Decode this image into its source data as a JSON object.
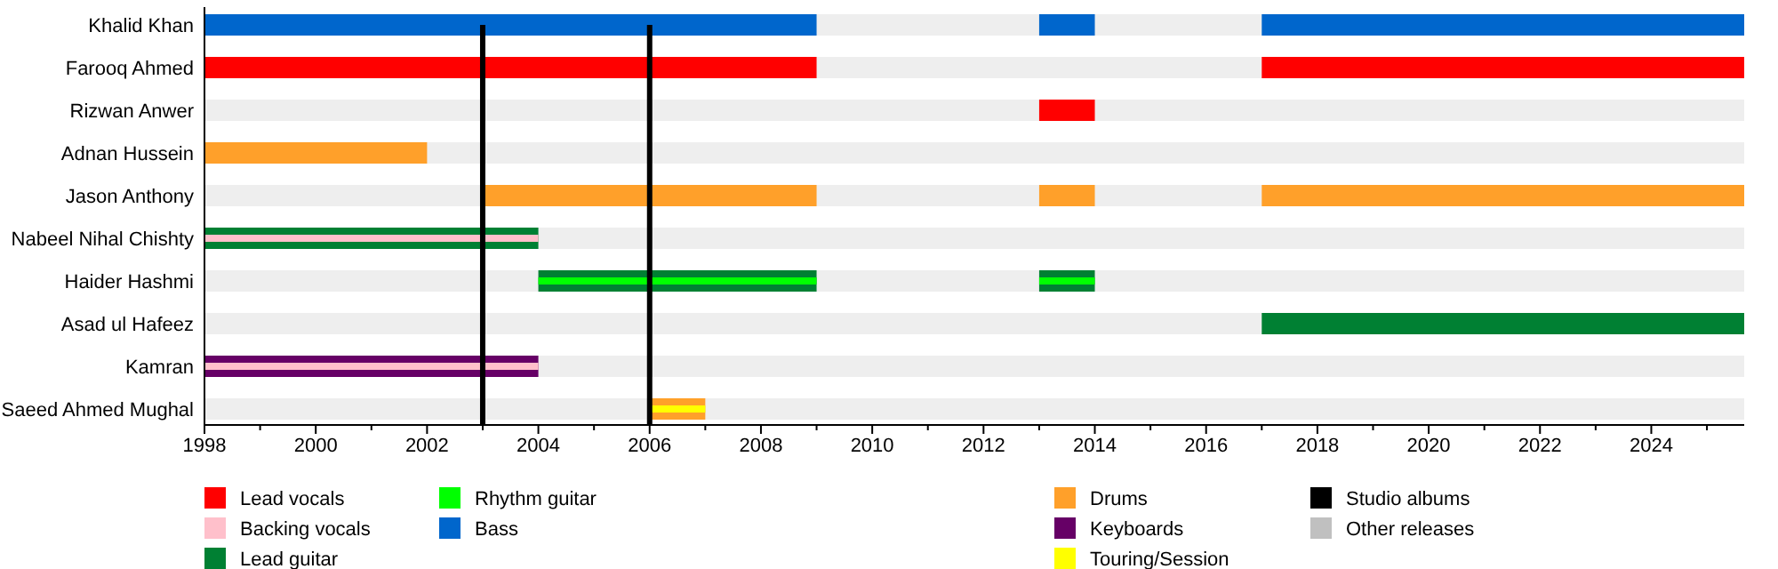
{
  "chart_data": {
    "type": "bar",
    "orientation": "horizontal",
    "categories": [
      "Khalid Khan",
      "Farooq Ahmed",
      "Rizwan Anwer",
      "Adnan Hussein",
      "Jason Anthony",
      "Nabeel Nihal Chishty",
      "Haider Hashmi",
      "Asad ul Hafeez",
      "Kamran",
      "Saeed Ahmed Mughal"
    ],
    "xlim": [
      1998,
      2025.67
    ],
    "xticks": [
      1998,
      {
        "value": 1999,
        "label": null
      },
      2000,
      {
        "value": 2001,
        "label": null
      },
      2002,
      {
        "value": 2003,
        "label": null
      },
      2004,
      {
        "value": 2005,
        "label": null
      },
      2006,
      {
        "value": 2007,
        "label": null
      },
      2008,
      {
        "value": 2009,
        "label": null
      },
      2010,
      {
        "value": 2011,
        "label": null
      },
      2012,
      {
        "value": 2013,
        "label": null
      },
      2014,
      {
        "value": 2015,
        "label": null
      },
      2016,
      {
        "value": 2017,
        "label": null
      },
      2018,
      {
        "value": 2019,
        "label": null
      },
      2020,
      {
        "value": 2021,
        "label": null
      },
      2022,
      {
        "value": 2023,
        "label": null
      },
      2024,
      {
        "value": 2025,
        "label": null
      }
    ],
    "series": [
      {
        "name": "Lead vocals",
        "color": "#ff0000",
        "base": [
          null,
          1998,
          2013,
          null,
          null,
          null,
          null,
          null,
          null,
          null
        ],
        "values": [
          null,
          11,
          1,
          null,
          null,
          null,
          null,
          null,
          null,
          null
        ]
      },
      {
        "name": "Bass",
        "color": "#0066cc",
        "base": [
          1998,
          null,
          null,
          null,
          null,
          null,
          null,
          null,
          null,
          null
        ],
        "values": [
          11,
          null,
          null,
          null,
          null,
          null,
          null,
          null,
          null,
          null
        ]
      },
      {
        "name": "Drums",
        "color": "#ffa02a",
        "base": [
          null,
          null,
          null,
          1998,
          2003,
          null,
          null,
          null,
          null,
          2006
        ],
        "values": [
          null,
          null,
          null,
          4,
          6,
          null,
          null,
          null,
          null,
          1
        ]
      },
      {
        "name": "Lead guitar",
        "color": "#008033",
        "base": [
          null,
          null,
          null,
          null,
          null,
          1998,
          2004,
          2017,
          null,
          null
        ],
        "values": [
          null,
          null,
          null,
          null,
          null,
          6,
          5,
          8.67,
          null,
          null
        ]
      },
      {
        "name": "Keyboards",
        "color": "#660066",
        "base": [
          null,
          null,
          null,
          null,
          null,
          null,
          null,
          null,
          1998,
          null
        ],
        "values": [
          null,
          null,
          null,
          null,
          null,
          null,
          null,
          null,
          6,
          null
        ]
      },
      {
        "name": "Backing vocals",
        "color": "#ffc0cb",
        "base": [
          null,
          null,
          null,
          null,
          null,
          1998,
          null,
          null,
          1998,
          null
        ],
        "values": [
          null,
          null,
          null,
          null,
          null,
          6,
          null,
          null,
          6,
          null
        ]
      },
      {
        "name": "Rhythm guitar",
        "color": "#00ff00",
        "base": [
          null,
          null,
          null,
          null,
          null,
          null,
          2004,
          null,
          null,
          null
        ],
        "values": [
          null,
          null,
          null,
          null,
          null,
          null,
          5,
          null,
          null,
          null
        ]
      },
      {
        "name": "Touring/Session",
        "color": "#ffff00",
        "base": [
          null,
          null,
          null,
          null,
          null,
          null,
          null,
          null,
          null,
          2006
        ],
        "values": [
          null,
          null,
          null,
          null,
          null,
          null,
          null,
          null,
          null,
          1
        ]
      },
      {
        "color": "#ff0000",
        "base": [
          null,
          2017,
          null,
          null,
          null,
          null,
          null,
          null,
          null,
          null
        ],
        "values": [
          null,
          8.67,
          null,
          null,
          null,
          null,
          null,
          null,
          null,
          null
        ]
      },
      {
        "color": "#0066cc",
        "base": [
          2013,
          null,
          null,
          null,
          null,
          null,
          null,
          null,
          null,
          null
        ],
        "values": [
          1,
          null,
          null,
          null,
          null,
          null,
          null,
          null,
          null,
          null
        ]
      },
      {
        "color": "#0066cc",
        "base": [
          2017,
          null,
          null,
          null,
          null,
          null,
          null,
          null,
          null,
          null
        ],
        "values": [
          8.67,
          null,
          null,
          null,
          null,
          null,
          null,
          null,
          null,
          null
        ]
      },
      {
        "color": "#ffa02a",
        "base": [
          null,
          null,
          null,
          null,
          2013,
          null,
          null,
          null,
          null,
          null
        ],
        "values": [
          null,
          null,
          null,
          null,
          1,
          null,
          null,
          null,
          null,
          null
        ]
      },
      {
        "color": "#ffa02a",
        "base": [
          null,
          null,
          null,
          null,
          2017,
          null,
          null,
          null,
          null,
          null
        ],
        "values": [
          null,
          null,
          null,
          null,
          8.67,
          null,
          null,
          null,
          null,
          null
        ]
      },
      {
        "color": "#008033",
        "base": [
          null,
          null,
          null,
          null,
          null,
          null,
          2013,
          null,
          null,
          null
        ],
        "values": [
          null,
          null,
          null,
          null,
          null,
          null,
          1,
          null,
          null,
          null
        ]
      },
      {
        "color": "#00ff00",
        "base": [
          null,
          null,
          null,
          null,
          null,
          null,
          2013,
          null,
          null,
          null
        ],
        "values": [
          null,
          null,
          null,
          null,
          null,
          null,
          1,
          null,
          null,
          null
        ]
      },
      {
        "name": "Other releases",
        "color": "#c0c0c0",
        "base": [
          null,
          null,
          null,
          null,
          null,
          null,
          null,
          null,
          null,
          null
        ],
        "values": [
          null,
          null,
          null,
          null,
          null,
          null,
          null,
          null,
          null,
          null
        ]
      }
    ],
    "ref_lines": [
      {
        "axis": "x",
        "value": 2003,
        "label": "Studio albums",
        "color": "#000000"
      },
      {
        "axis": "x",
        "value": 2006,
        "color": "#000000"
      }
    ],
    "legend": "bottom"
  }
}
